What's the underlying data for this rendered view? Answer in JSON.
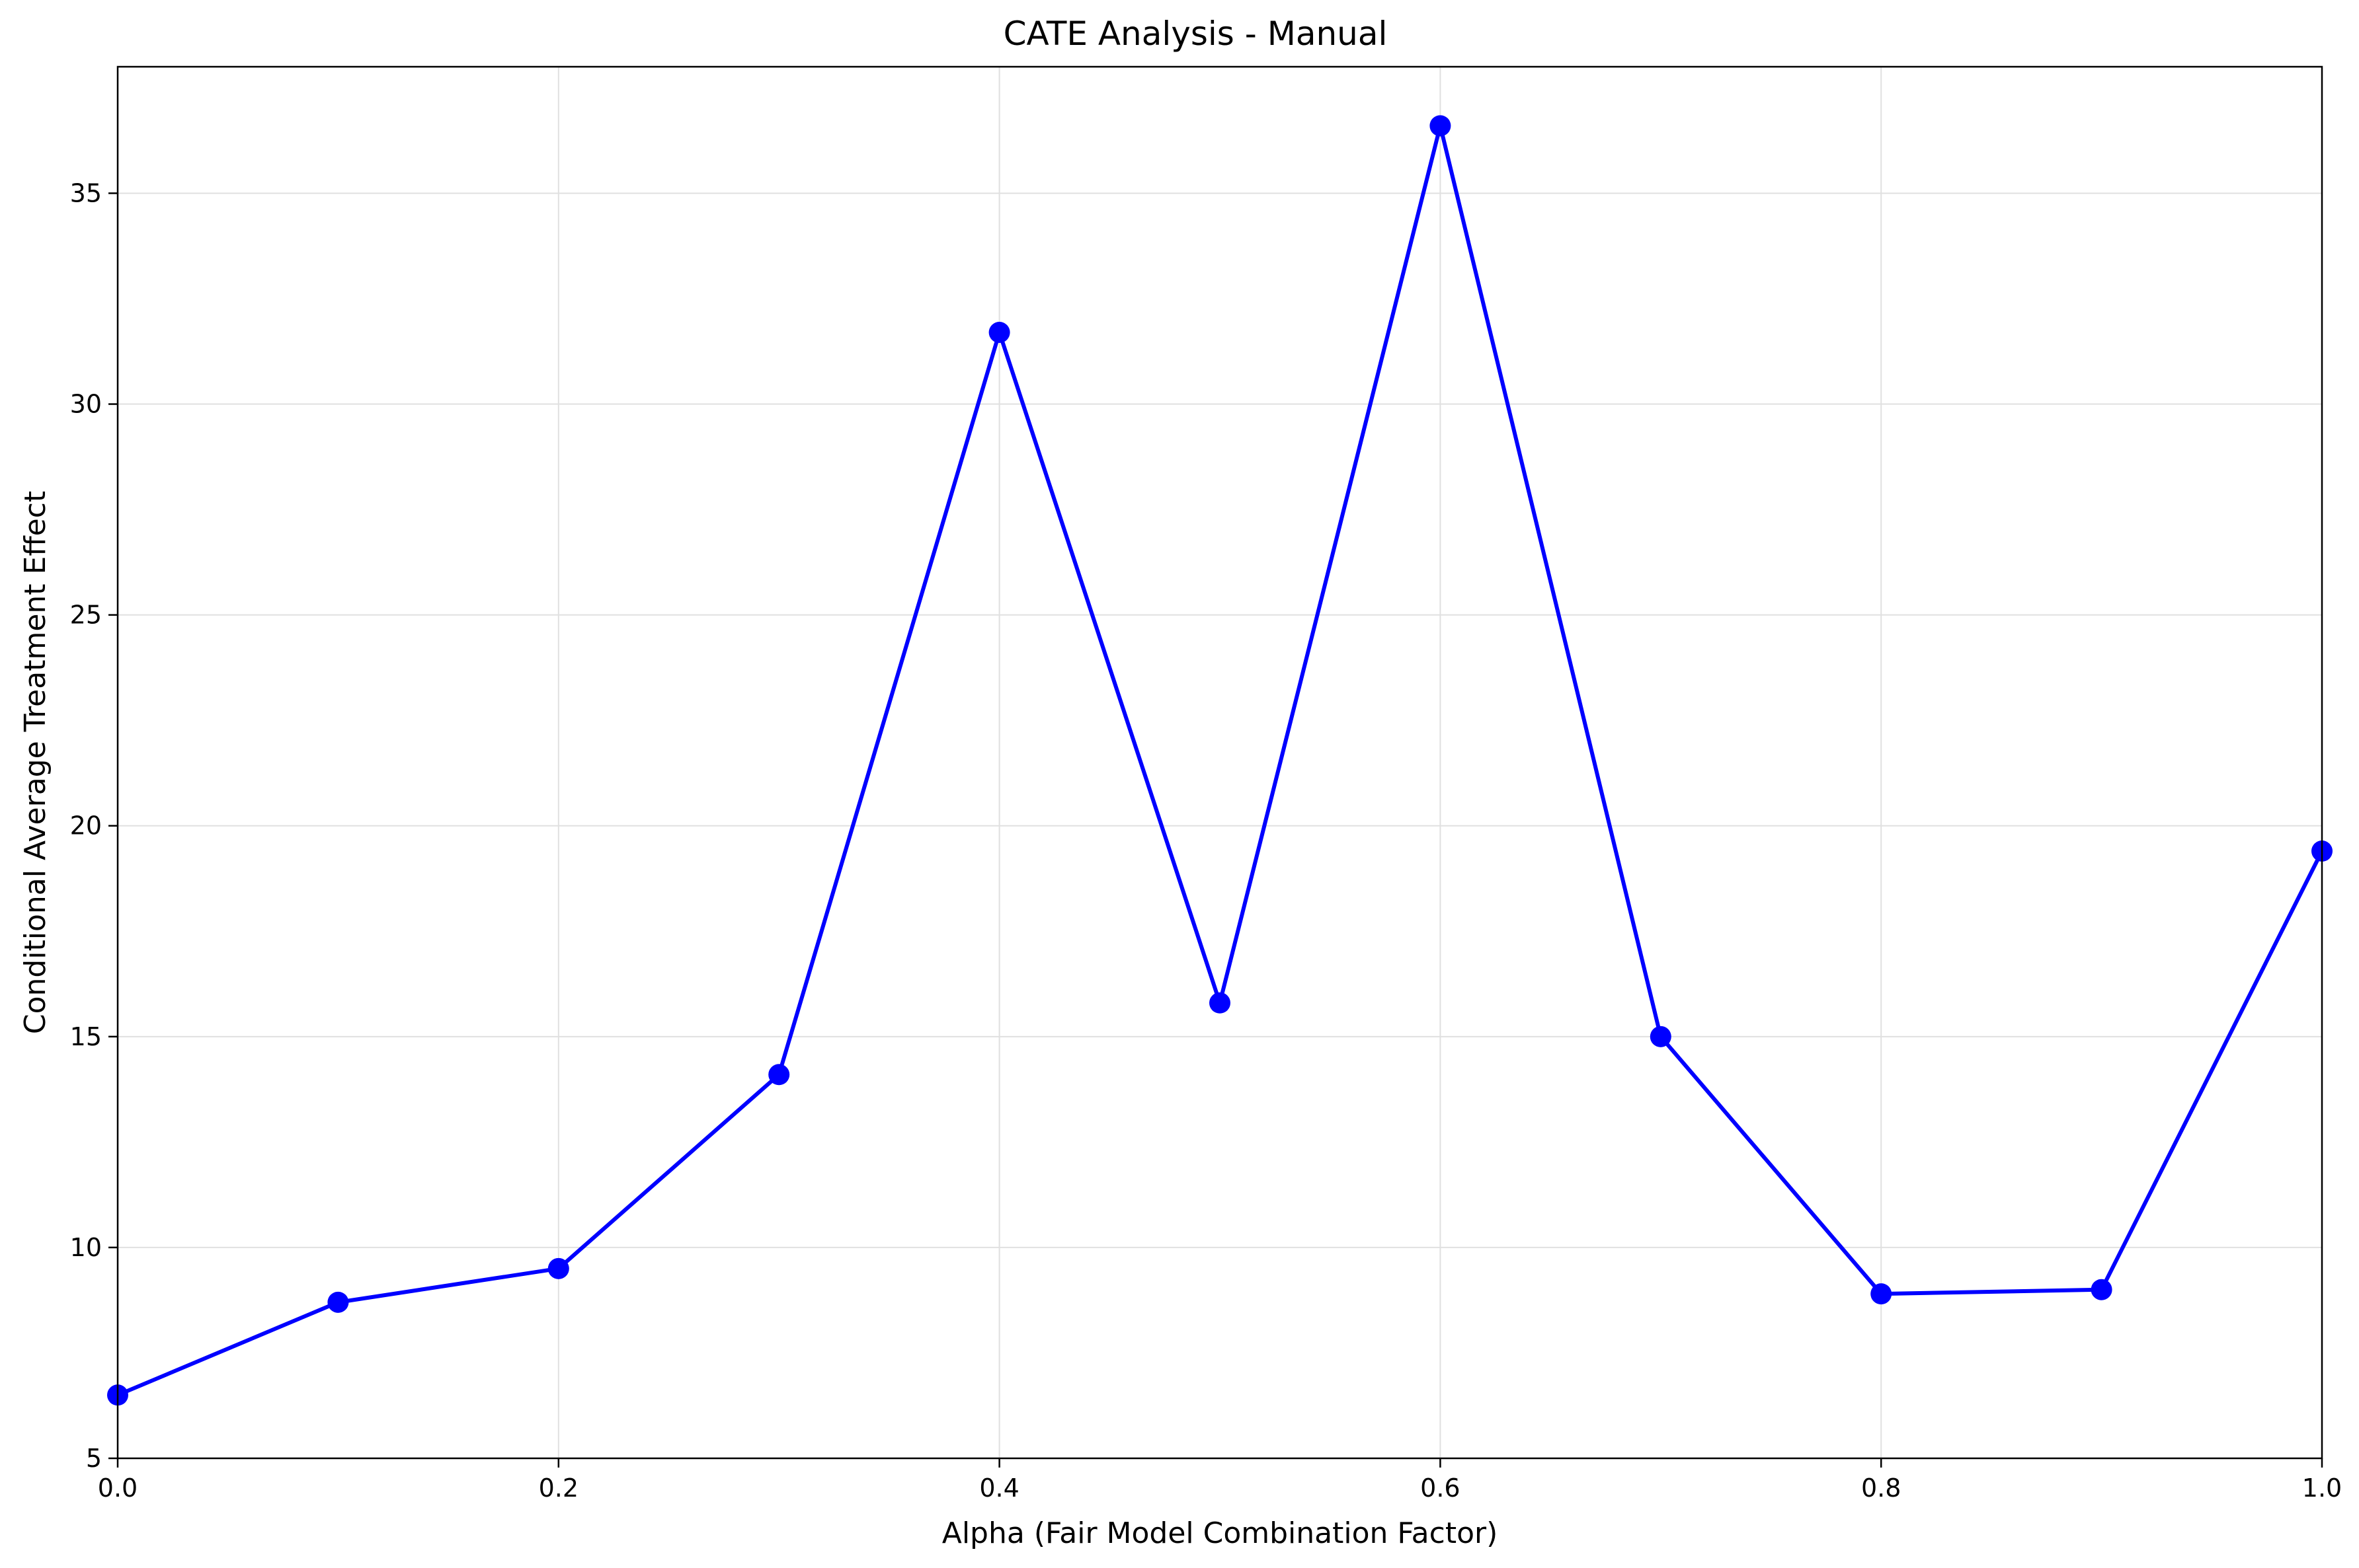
{
  "chart_data": {
    "type": "line",
    "title": "CATE Analysis - Manual",
    "xlabel": "Alpha (Fair Model Combination Factor)",
    "ylabel": "Conditional Average Treatment Effect",
    "xlim": [
      0.0,
      1.0
    ],
    "ylim": [
      5,
      38
    ],
    "x_ticks": [
      0.0,
      0.2,
      0.4,
      0.6,
      0.8,
      1.0
    ],
    "x_tick_labels": [
      "0.0",
      "0.2",
      "0.4",
      "0.6",
      "0.8",
      "1.0"
    ],
    "y_ticks": [
      5,
      10,
      15,
      20,
      25,
      30,
      35
    ],
    "y_tick_labels": [
      "5",
      "10",
      "15",
      "20",
      "25",
      "30",
      "35"
    ],
    "grid": true,
    "legend": false,
    "series": [
      {
        "color": "#0000ff",
        "marker": "circle",
        "x": [
          0.0,
          0.1,
          0.2,
          0.3,
          0.4,
          0.5,
          0.6,
          0.7,
          0.8,
          0.9,
          1.0
        ],
        "y": [
          6.5,
          8.7,
          9.5,
          14.1,
          31.7,
          15.8,
          36.6,
          15.0,
          8.9,
          9.0,
          19.4
        ]
      }
    ]
  }
}
